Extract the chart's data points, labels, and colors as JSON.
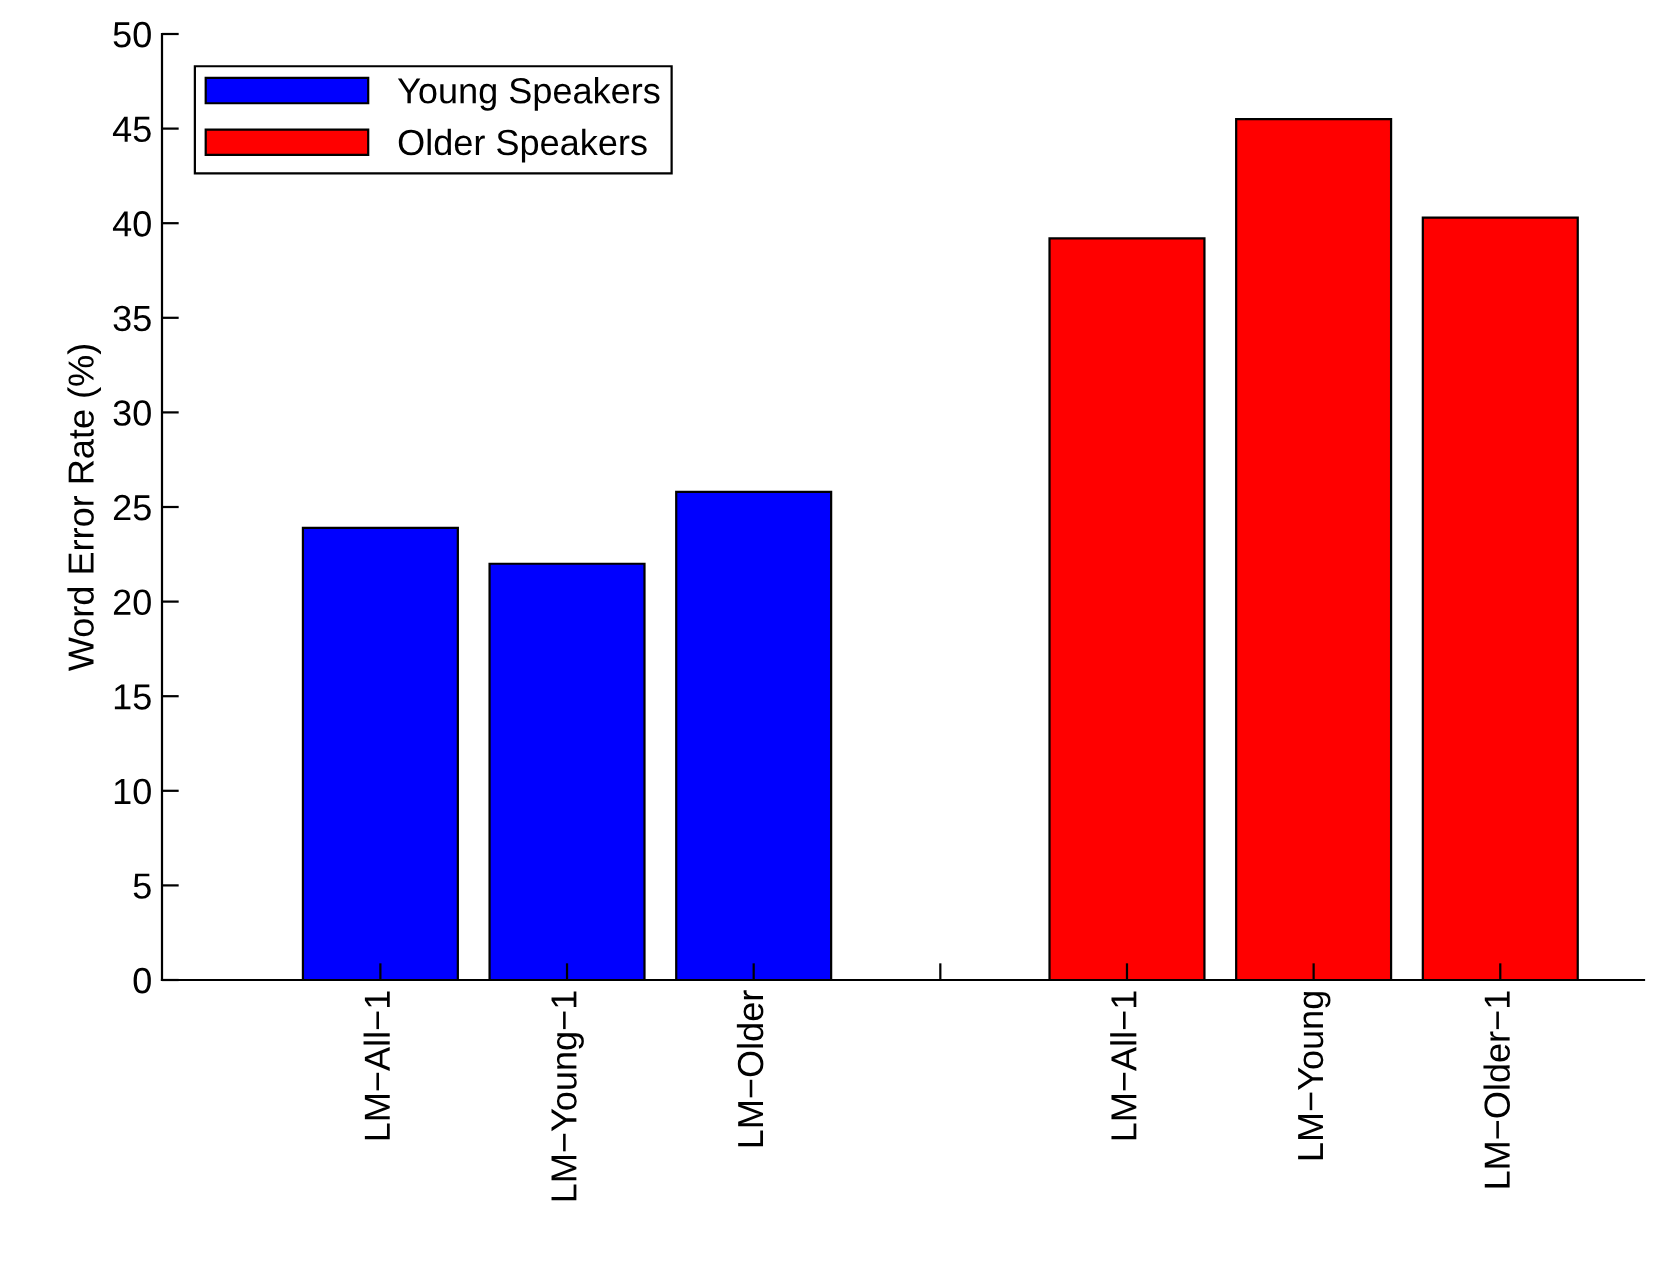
{
  "chart_data": {
    "type": "bar",
    "ylabel": "Word Error Rate (%)",
    "categories": [
      "LM−All−1",
      "LM−Young−1",
      "LM−Older",
      null,
      "LM−All−1",
      "LM−Young",
      "LM−Older−1"
    ],
    "series": [
      {
        "name": "Young Speakers",
        "color": "#0000ff",
        "values": [
          23.9,
          22.0,
          25.8,
          null,
          null,
          null,
          null
        ]
      },
      {
        "name": "Older Speakers",
        "color": "#ff0000",
        "values": [
          null,
          null,
          null,
          null,
          39.2,
          45.5,
          40.3
        ]
      }
    ],
    "ylim": [
      0,
      50
    ],
    "yticks": [
      0,
      5,
      10,
      15,
      20,
      25,
      30,
      35,
      40,
      45,
      50
    ],
    "grid": false,
    "legend": "top left"
  }
}
